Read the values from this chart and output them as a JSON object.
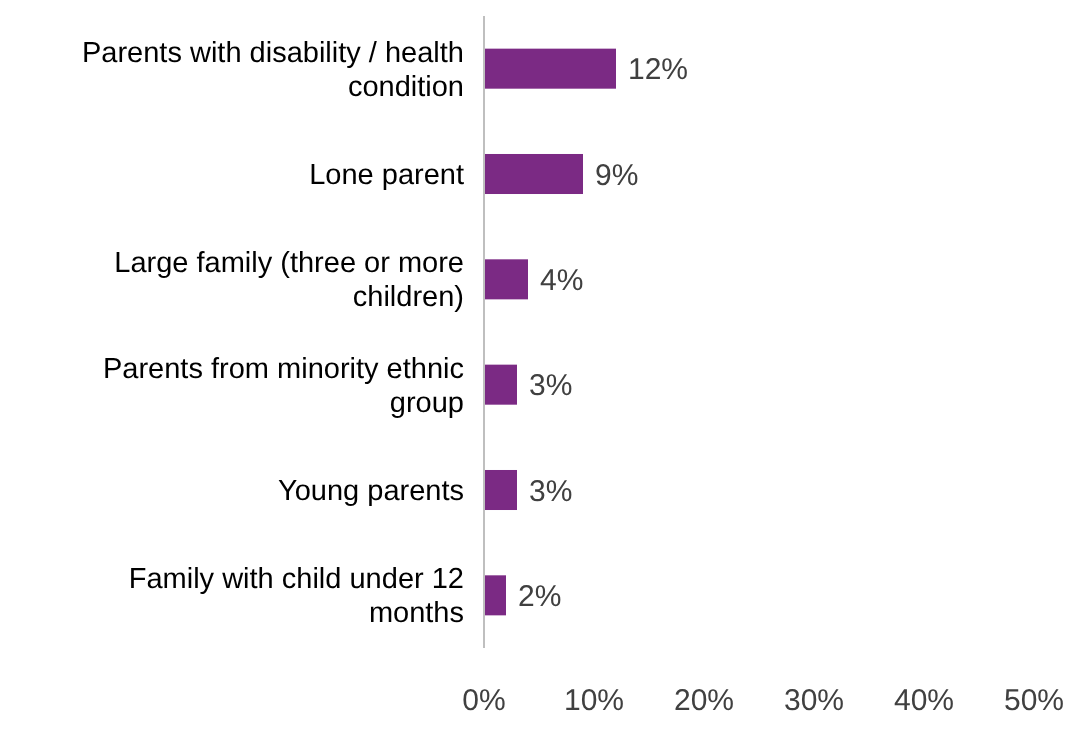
{
  "chart_data": {
    "type": "bar",
    "orientation": "horizontal",
    "categories": [
      "Parents with disability / health condition",
      "Lone parent",
      "Large family (three or more children)",
      "Parents from minority ethnic group",
      "Young parents",
      "Family with child under 12 months"
    ],
    "values": [
      12,
      9,
      4,
      3,
      3,
      2
    ],
    "value_labels": [
      "12%",
      "9%",
      "4%",
      "3%",
      "3%",
      "2%"
    ],
    "color": "#7b2a84",
    "xlim": [
      0,
      50
    ],
    "xticks": [
      {
        "value": 0,
        "label": "0%"
      },
      {
        "value": 10,
        "label": "10%"
      },
      {
        "value": 20,
        "label": "20%"
      },
      {
        "value": 30,
        "label": "30%"
      },
      {
        "value": 40,
        "label": "40%"
      },
      {
        "value": 50,
        "label": "50%"
      }
    ],
    "grid": false
  }
}
